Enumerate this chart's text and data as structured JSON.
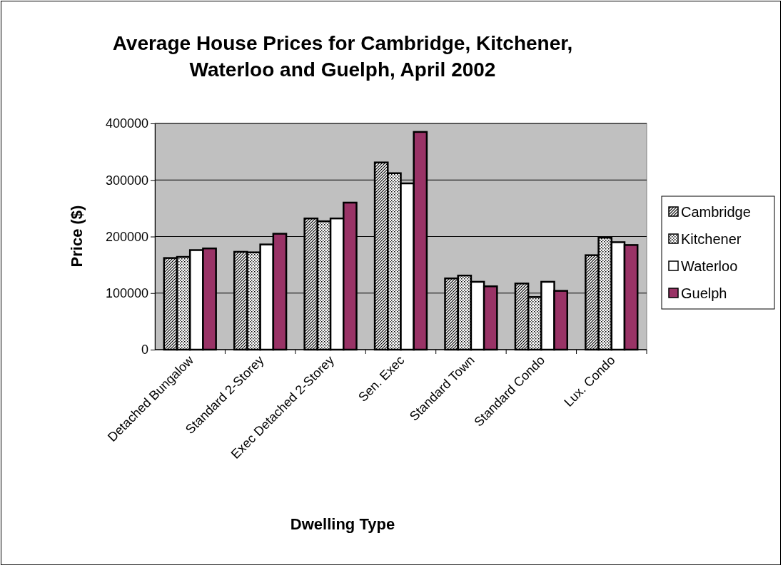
{
  "chart_data": {
    "type": "bar",
    "title": "Average House Prices for Cambridge, Kitchener, Waterloo and Guelph, April 2002",
    "xlabel": "Dwelling Type",
    "ylabel": "Price ($)",
    "categories": [
      "Detached Bungalow",
      "Standard 2-Storey",
      "Exec Detached 2-Storey",
      "Sen. Exec",
      "Standard Town",
      "Standard Condo",
      "Lux. Condo"
    ],
    "series": [
      {
        "name": "Cambridge",
        "color": "#000000",
        "values": [
          162000,
          173000,
          232000,
          331000,
          126000,
          117000,
          167000
        ]
      },
      {
        "name": "Kitchener",
        "color": "#000000",
        "values": [
          164000,
          172000,
          227000,
          312000,
          131000,
          93000,
          198000
        ]
      },
      {
        "name": "Waterloo",
        "color": "#ffffff",
        "values": [
          176000,
          186000,
          232000,
          294000,
          120000,
          120000,
          190000
        ]
      },
      {
        "name": "Guelph",
        "color": "#993366",
        "values": [
          179000,
          205000,
          260000,
          385000,
          112000,
          104000,
          185000
        ]
      }
    ],
    "ylim": [
      0,
      400000
    ],
    "yticks": [
      0,
      100000,
      200000,
      300000,
      400000
    ],
    "grid": "y",
    "legend": "right"
  }
}
